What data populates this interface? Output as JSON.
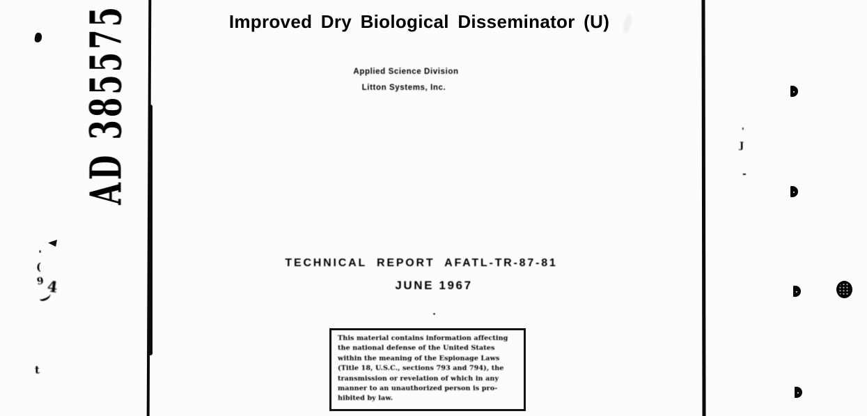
{
  "page": {
    "background": "#fcfcfb",
    "ink_color": "#0c0c0c"
  },
  "document": {
    "ad_number": "AD 385575",
    "title": "Improved Dry Biological Disseminator (U)",
    "organization": {
      "division": "Applied Science Division",
      "company": "Litton Systems, Inc."
    },
    "report_number_line": "TECHNICAL REPORT AFATL-TR-87-81",
    "date_line": "JUNE 1967",
    "security_notice": {
      "lines": [
        "This material contains information affecting",
        "the national defense of the United States",
        "within the meaning of the Espionage Laws",
        "(Title 18, U.S.C., sections 793 and 794), the",
        "transmission or revelation of which in any",
        "manner to an unauthorized person is pro-",
        "hibited by law."
      ]
    }
  },
  "artifacts": {
    "paren_glyph": "(",
    "nine_glyph": "9",
    "four_glyph": "4",
    "tee_glyph": "t",
    "apostrophe_glyph": "'",
    "jay_glyph": "J",
    "dash_glyph": "-"
  }
}
